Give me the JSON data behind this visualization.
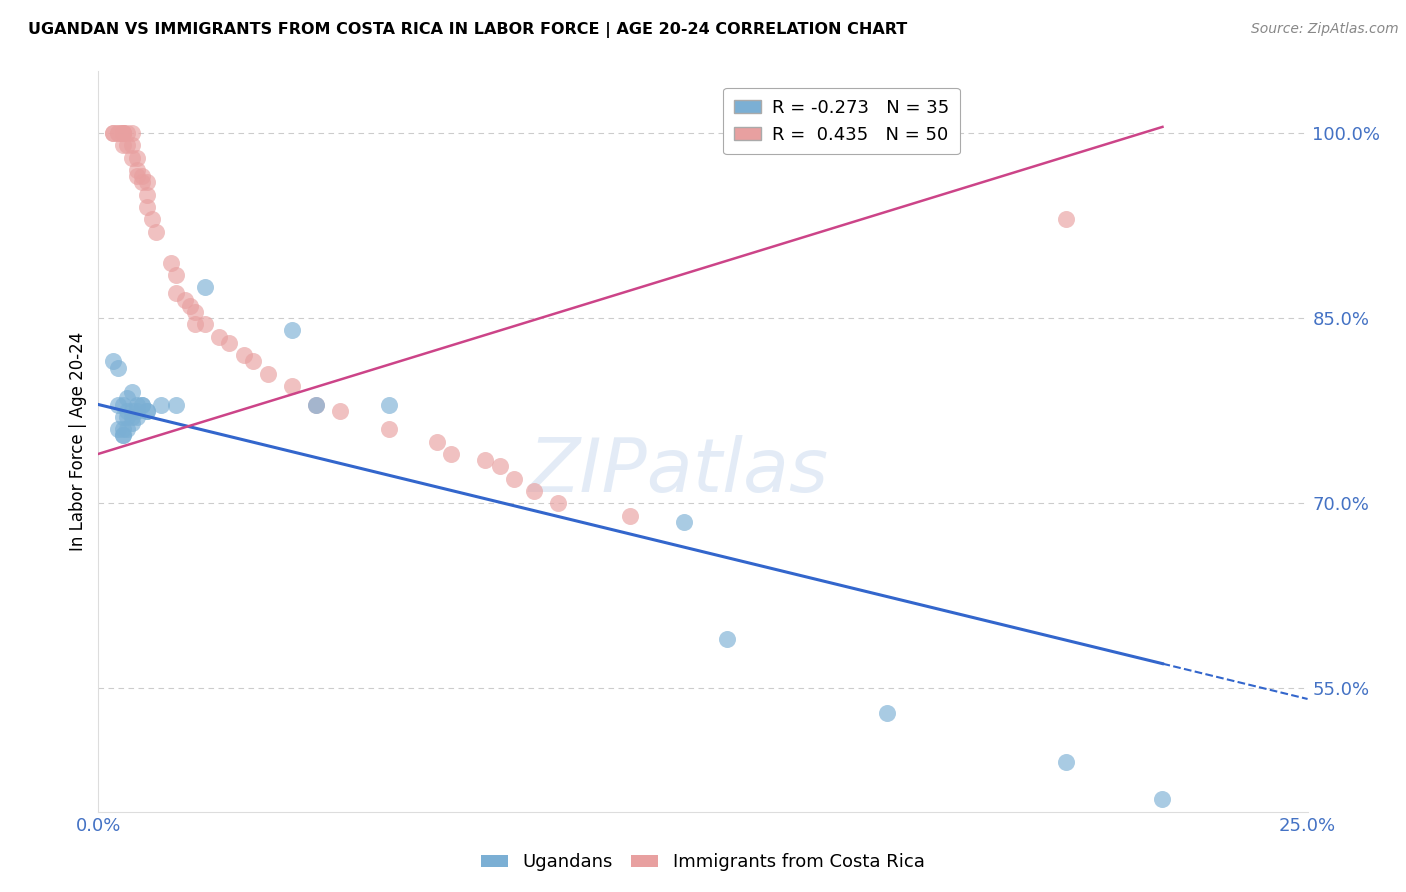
{
  "title": "UGANDAN VS IMMIGRANTS FROM COSTA RICA IN LABOR FORCE | AGE 20-24 CORRELATION CHART",
  "source": "Source: ZipAtlas.com",
  "ylabel": "In Labor Force | Age 20-24",
  "xlim": [
    0.0,
    0.25
  ],
  "ylim": [
    0.45,
    1.05
  ],
  "yticks": [
    0.55,
    0.7,
    0.85,
    1.0
  ],
  "ytick_labels": [
    "55.0%",
    "70.0%",
    "85.0%",
    "100.0%"
  ],
  "xticks": [
    0.0,
    0.05,
    0.1,
    0.15,
    0.2,
    0.25
  ],
  "xtick_labels": [
    "0.0%",
    "",
    "",
    "",
    "",
    "25.0%"
  ],
  "blue_R": -0.273,
  "blue_N": 35,
  "pink_R": 0.435,
  "pink_N": 50,
  "blue_color": "#7bafd4",
  "pink_color": "#e8a0a0",
  "blue_line_color": "#3366cc",
  "pink_line_color": "#cc4488",
  "grid_color": "#cccccc",
  "tick_color": "#4472c4",
  "watermark": "ZIPatlas",
  "blue_line_x0": 0.0,
  "blue_line_y0": 0.78,
  "blue_line_x1": 0.22,
  "blue_line_y1": 0.57,
  "blue_line_solid_end": 0.22,
  "pink_line_x0": 0.0,
  "pink_line_y0": 0.74,
  "pink_line_x1": 0.22,
  "pink_line_y1": 1.005,
  "blue_scatter_x": [
    0.003,
    0.004,
    0.004,
    0.004,
    0.005,
    0.005,
    0.005,
    0.005,
    0.005,
    0.006,
    0.006,
    0.006,
    0.006,
    0.007,
    0.007,
    0.007,
    0.007,
    0.008,
    0.008,
    0.008,
    0.009,
    0.009,
    0.01,
    0.01,
    0.013,
    0.016,
    0.022,
    0.04,
    0.045,
    0.06,
    0.13,
    0.163,
    0.2,
    0.22,
    0.121
  ],
  "blue_scatter_y": [
    0.815,
    0.81,
    0.78,
    0.76,
    0.78,
    0.77,
    0.76,
    0.755,
    0.755,
    0.785,
    0.775,
    0.77,
    0.76,
    0.79,
    0.775,
    0.77,
    0.765,
    0.78,
    0.775,
    0.77,
    0.78,
    0.78,
    0.775,
    0.775,
    0.78,
    0.78,
    0.875,
    0.84,
    0.78,
    0.78,
    0.59,
    0.53,
    0.49,
    0.46,
    0.685
  ],
  "pink_scatter_x": [
    0.003,
    0.003,
    0.004,
    0.004,
    0.005,
    0.005,
    0.005,
    0.005,
    0.005,
    0.006,
    0.006,
    0.007,
    0.007,
    0.007,
    0.008,
    0.008,
    0.008,
    0.009,
    0.009,
    0.01,
    0.01,
    0.01,
    0.011,
    0.012,
    0.015,
    0.016,
    0.016,
    0.018,
    0.019,
    0.02,
    0.02,
    0.022,
    0.025,
    0.027,
    0.03,
    0.032,
    0.035,
    0.04,
    0.045,
    0.05,
    0.06,
    0.07,
    0.073,
    0.08,
    0.083,
    0.086,
    0.09,
    0.095,
    0.2,
    0.11
  ],
  "pink_scatter_y": [
    1.0,
    1.0,
    1.0,
    1.0,
    1.0,
    1.0,
    1.0,
    1.0,
    0.99,
    1.0,
    0.99,
    1.0,
    0.99,
    0.98,
    0.98,
    0.97,
    0.965,
    0.965,
    0.96,
    0.96,
    0.95,
    0.94,
    0.93,
    0.92,
    0.895,
    0.885,
    0.87,
    0.865,
    0.86,
    0.855,
    0.845,
    0.845,
    0.835,
    0.83,
    0.82,
    0.815,
    0.805,
    0.795,
    0.78,
    0.775,
    0.76,
    0.75,
    0.74,
    0.735,
    0.73,
    0.72,
    0.71,
    0.7,
    0.93,
    0.69
  ]
}
